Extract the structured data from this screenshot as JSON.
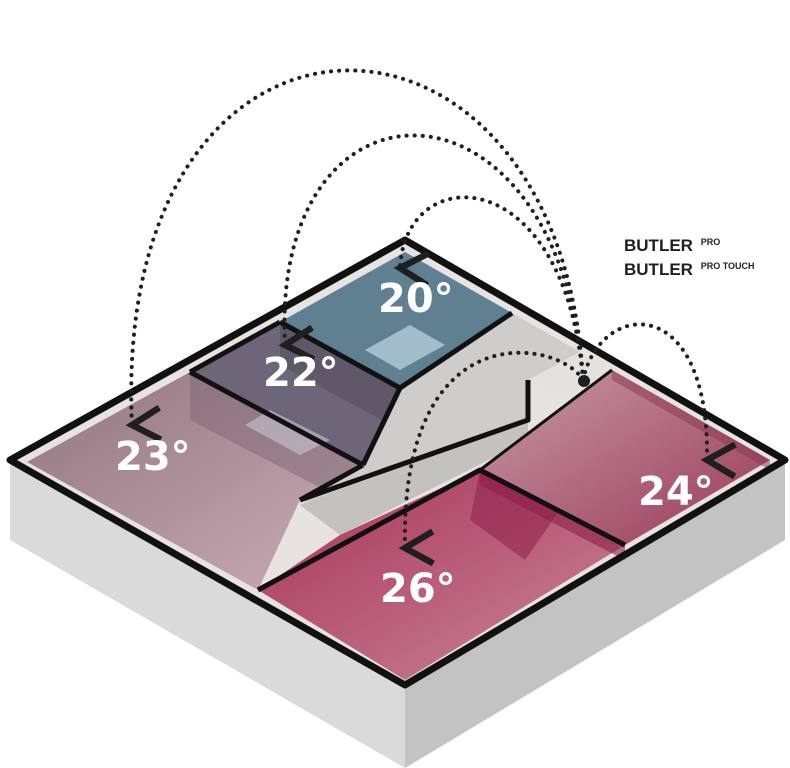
{
  "brand": {
    "line1": {
      "name": "BUTLER",
      "sup": "PRO"
    },
    "line2": {
      "name": "BUTLER",
      "sup": "PRO TOUCH"
    }
  },
  "rooms": [
    {
      "id": "room-20",
      "temperature": "20°",
      "color": "#5f8091"
    },
    {
      "id": "room-22",
      "temperature": "22°",
      "color": "#6c6678"
    },
    {
      "id": "room-23",
      "temperature": "23°",
      "color": "#8c6f7a"
    },
    {
      "id": "room-24",
      "temperature": "24°",
      "color": "#a9586f"
    },
    {
      "id": "room-26",
      "temperature": "26°",
      "color": "#b0405e"
    }
  ],
  "colors": {
    "wall_outline": "#111111",
    "base_light": "#dadada",
    "base_dark": "#c3c3c3",
    "corridor": "#cfcdcc",
    "hub_dot": "#1f1f1f",
    "connector": "#1f1f1f"
  }
}
